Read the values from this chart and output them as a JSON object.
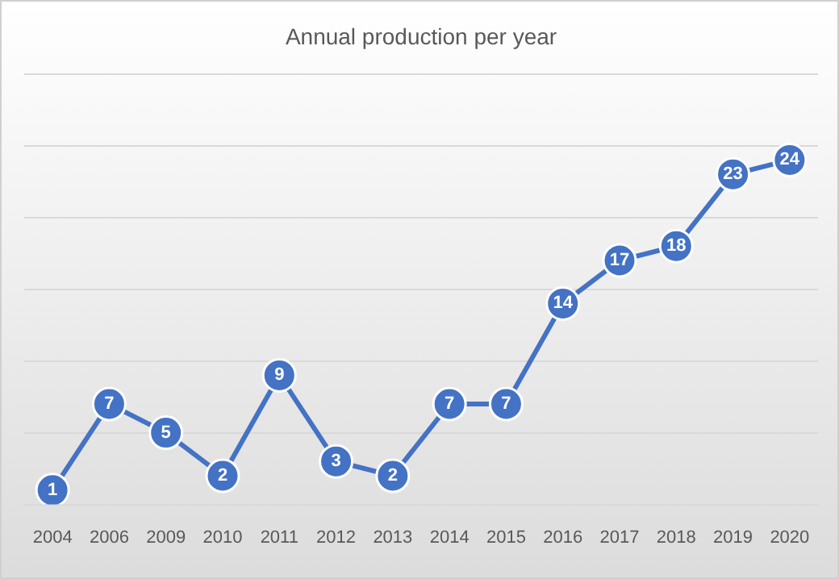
{
  "chart_data": {
    "type": "line",
    "title": "Annual production per year",
    "categories": [
      "2004",
      "2006",
      "2009",
      "2010",
      "2011",
      "2012",
      "2013",
      "2014",
      "2015",
      "2016",
      "2017",
      "2018",
      "2019",
      "2020"
    ],
    "series": [
      {
        "color": "#4472c4",
        "values": [
          1,
          7,
          5,
          2,
          9,
          3,
          2,
          7,
          7,
          14,
          17,
          18,
          23,
          24
        ]
      }
    ],
    "ylim": [
      0,
      30
    ],
    "yticks": [
      {
        "value": 0,
        "label": null
      },
      {
        "value": 5,
        "label": null
      },
      {
        "value": 10,
        "label": null
      },
      {
        "value": 15,
        "label": null
      },
      {
        "value": 20,
        "label": null
      },
      {
        "value": 25,
        "label": null
      },
      {
        "value": 30,
        "label": null
      }
    ],
    "grid": "y",
    "legend": false,
    "marker": "circle",
    "line_style": "solid",
    "data_labels": true,
    "tick_labels": "x"
  }
}
